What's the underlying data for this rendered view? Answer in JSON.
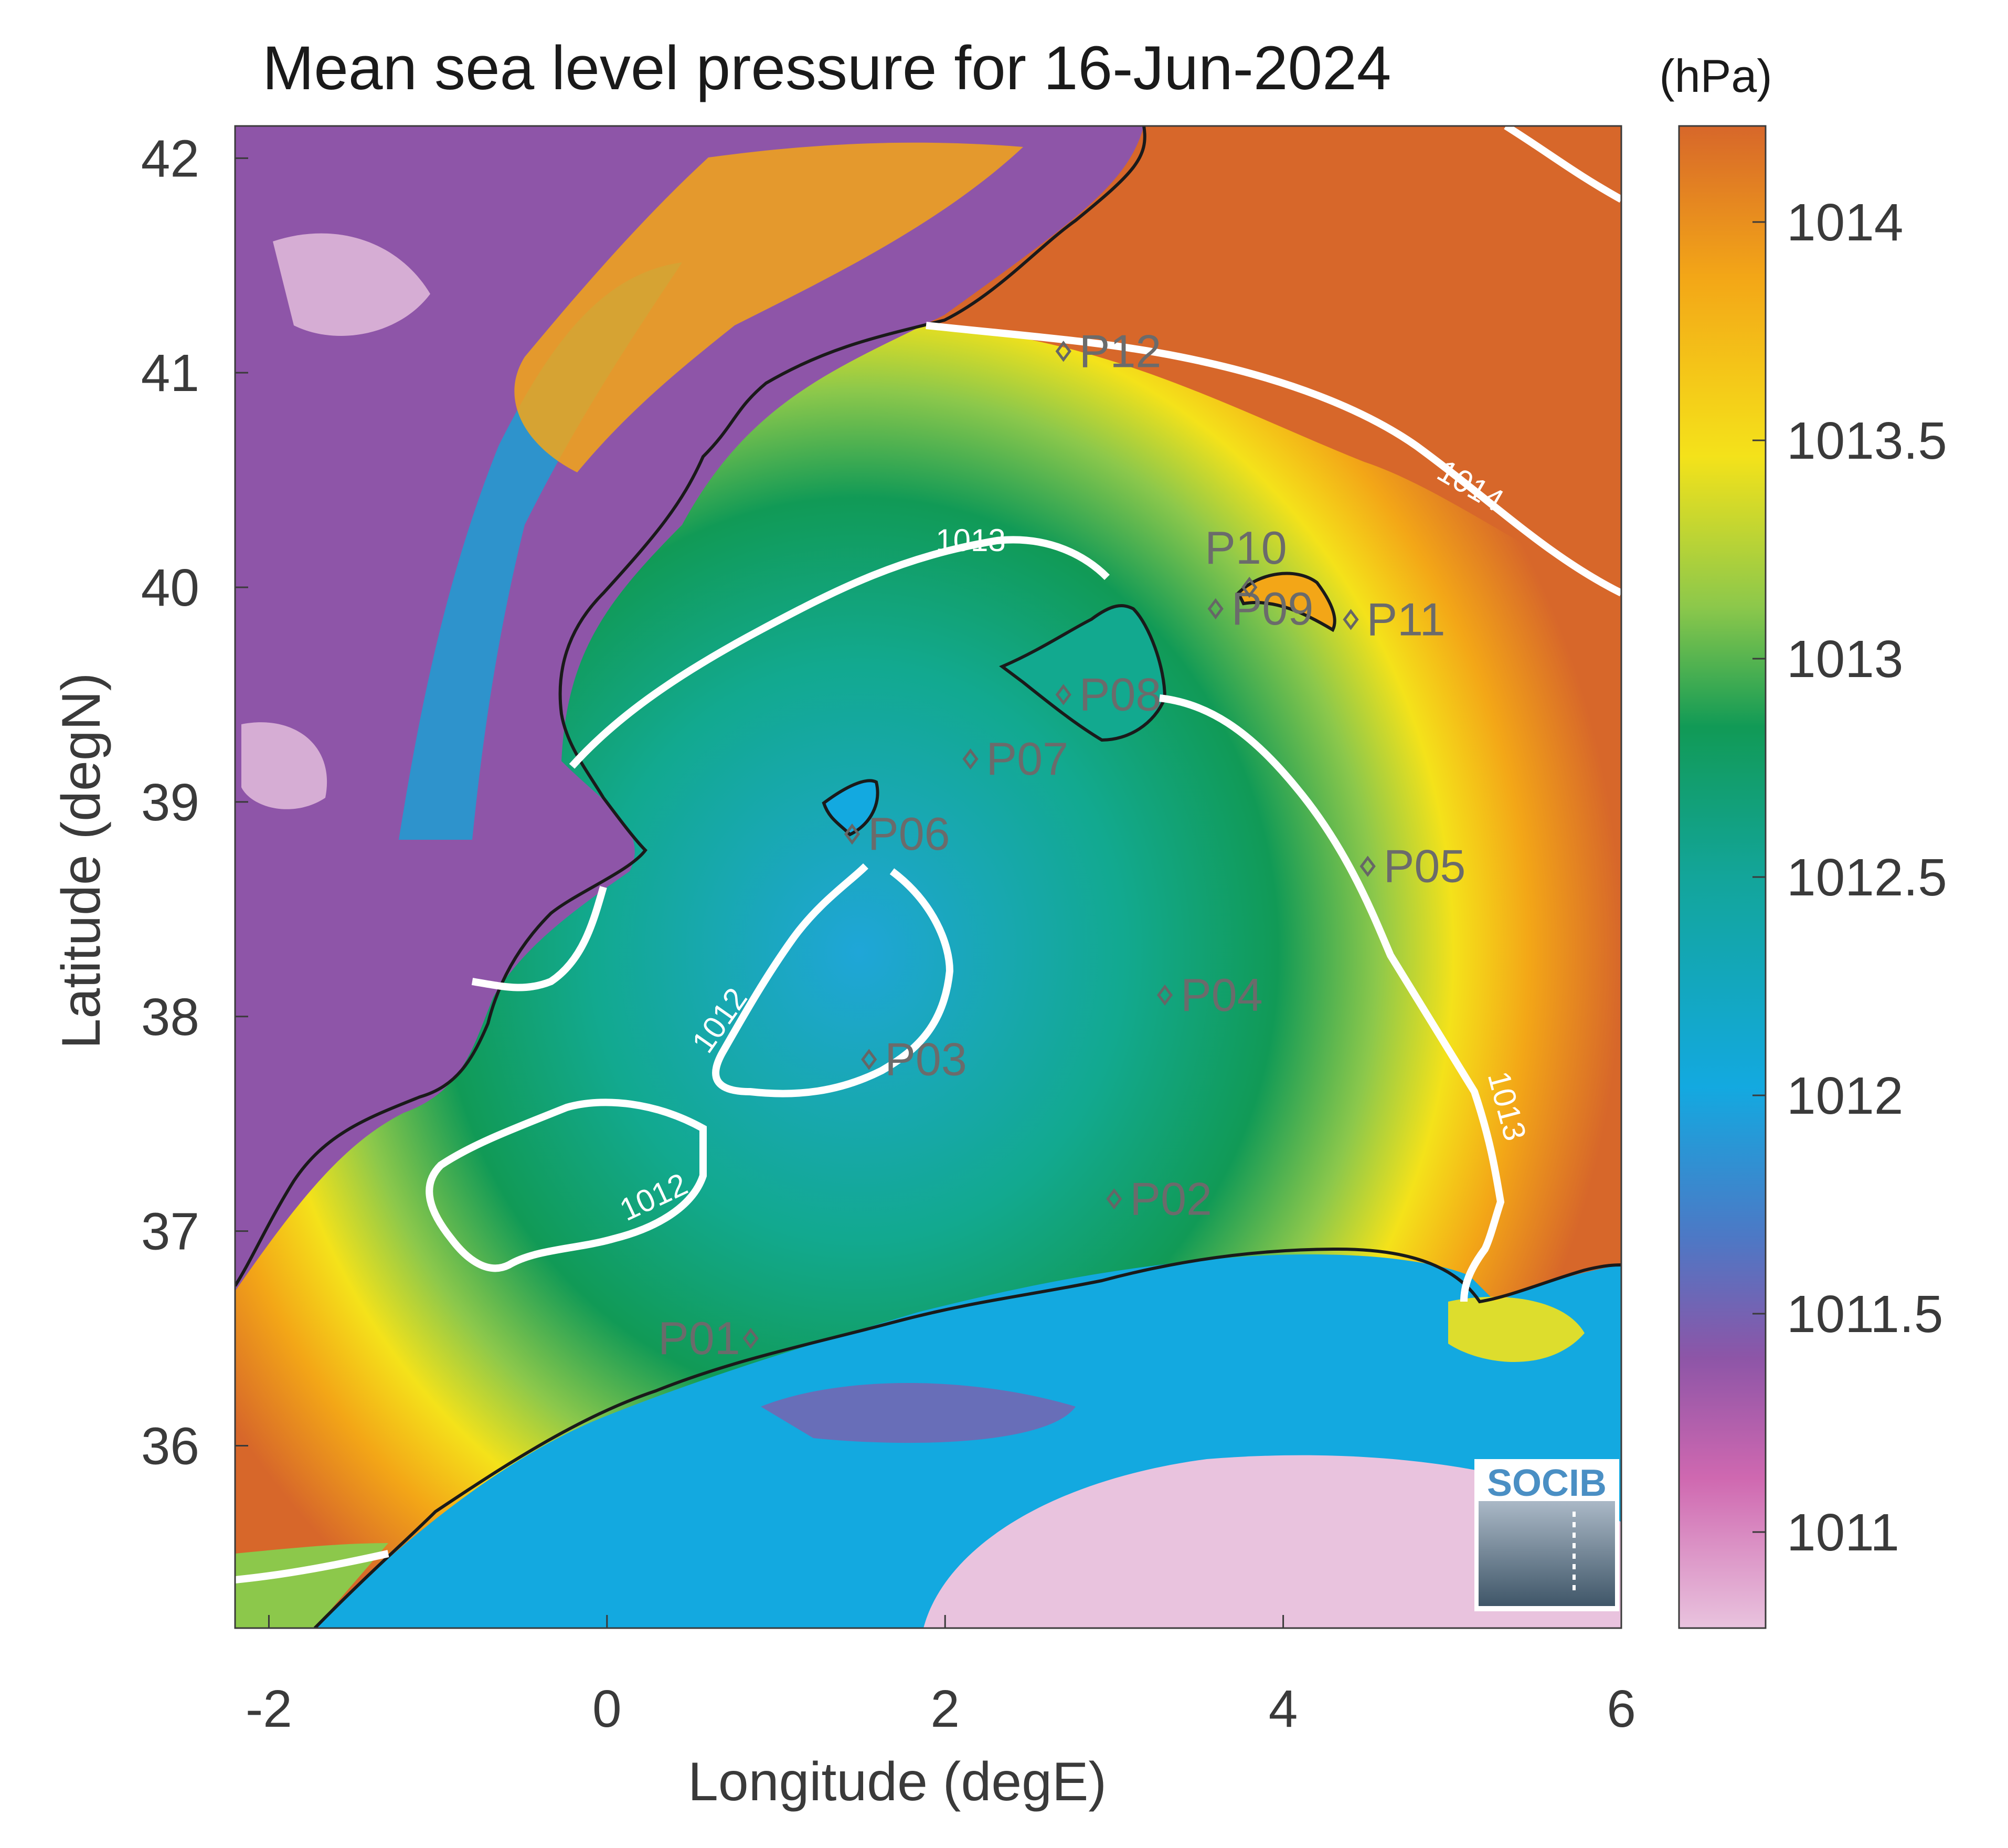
{
  "title": "Mean sea level pressure for 16-Jun-2024",
  "colorbar": {
    "unit_label": "(hPa)",
    "ticks": [
      "1014",
      "1013.5",
      "1013",
      "1012.5",
      "1012",
      "1011.5",
      "1011"
    ],
    "colors": [
      "#d7672a",
      "#f3a617",
      "#f4e21a",
      "#8cc84b",
      "#119a56",
      "#13a59a",
      "#13a9e0",
      "#4d78c5",
      "#8d55a7",
      "#cf68b0",
      "#e9c3de"
    ]
  },
  "axes": {
    "xlabel": "Longitude (degE)",
    "ylabel": "Latitude (degN)",
    "xticks": [
      "-2",
      "0",
      "2",
      "4",
      "6"
    ],
    "yticks": [
      "42",
      "41",
      "40",
      "39",
      "38",
      "37",
      "36"
    ]
  },
  "contours": [
    {
      "label": "1014"
    },
    {
      "label": "1013"
    },
    {
      "label": "1013"
    },
    {
      "label": "1012"
    },
    {
      "label": "1012"
    }
  ],
  "stations": [
    {
      "id": "P01",
      "lon": 0.85,
      "lat": 36.5
    },
    {
      "id": "P02",
      "lon": 3.0,
      "lat": 37.15
    },
    {
      "id": "P03",
      "lon": 1.55,
      "lat": 37.8
    },
    {
      "id": "P04",
      "lon": 3.3,
      "lat": 38.1
    },
    {
      "id": "P05",
      "lon": 4.5,
      "lat": 38.7
    },
    {
      "id": "P06",
      "lon": 1.45,
      "lat": 38.85
    },
    {
      "id": "P07",
      "lon": 2.15,
      "lat": 39.2
    },
    {
      "id": "P08",
      "lon": 2.7,
      "lat": 39.5
    },
    {
      "id": "P09",
      "lon": 3.6,
      "lat": 39.9
    },
    {
      "id": "P10",
      "lon": 3.8,
      "lat": 40.0
    },
    {
      "id": "P11",
      "lon": 4.4,
      "lat": 39.85
    },
    {
      "id": "P12",
      "lon": 2.7,
      "lat": 41.1
    }
  ],
  "logo": {
    "text": "SOCIB"
  }
}
